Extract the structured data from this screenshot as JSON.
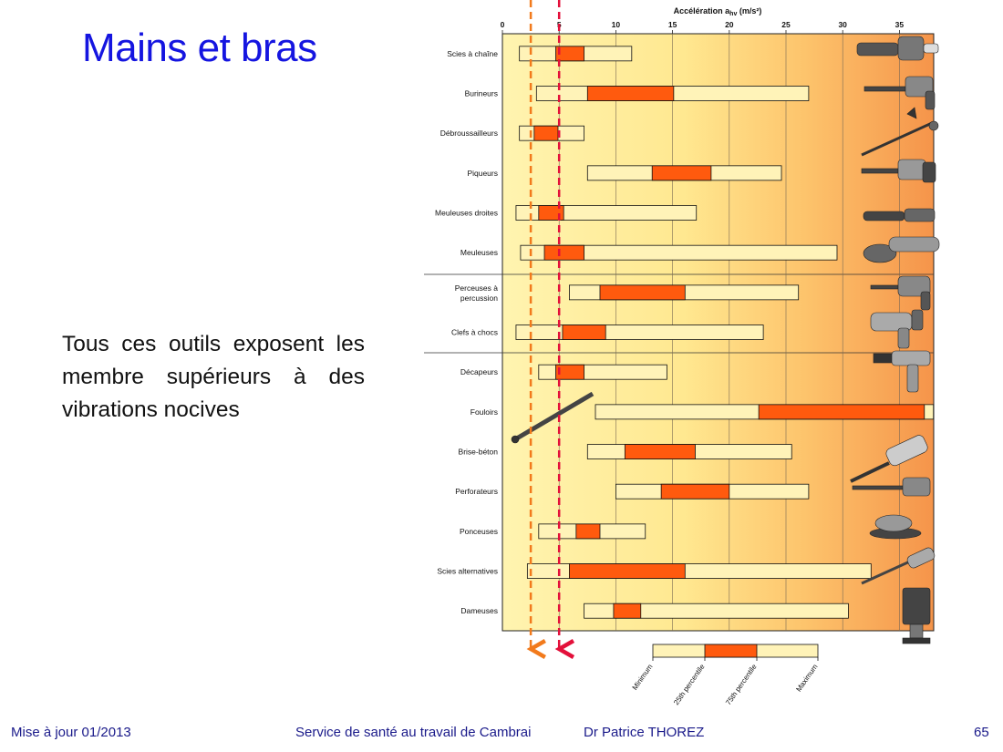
{
  "slide": {
    "title": "Mains et bras",
    "body": "Tous ces outils exposent les membre supérieurs à des vibrations nocives"
  },
  "footer": {
    "left": "Mise à jour 01/2013",
    "center": "Service de santé au travail de Cambrai",
    "author": "Dr Patrice THOREZ",
    "page": "65"
  },
  "colors": {
    "bar_outer": "#fff3b8",
    "bar_inner": "#ff5a0e",
    "line_orange": "#f27a1c",
    "line_red": "#e3103a",
    "title": "#1515e0"
  },
  "chart_data": {
    "type": "bar",
    "orientation": "horizontal",
    "xlabel": "Accélération a",
    "xlabel_sub": "hv",
    "xlabel_unit": " (m/s²)",
    "xlim": [
      0,
      38
    ],
    "ticks": [
      0,
      5,
      10,
      15,
      20,
      25,
      30,
      35
    ],
    "threshold_lines": [
      2.5,
      5
    ],
    "categories": [
      "Scies à chaîne",
      "Burineurs",
      "Débroussailleurs",
      "Piqueurs",
      "Meuleuses droites",
      "Meuleuses",
      "Perceuses à percussion",
      "Clefs à chocs",
      "Décapeurs",
      "Fouloirs",
      "Brise-béton",
      "Perforateurs",
      "Ponceuses",
      "Scies alternatives",
      "Dameuses"
    ],
    "series": [
      {
        "name": "Minimum",
        "values": [
          1.5,
          3,
          1.5,
          7.5,
          1.2,
          1.6,
          5.9,
          1.2,
          3.2,
          8.2,
          7.5,
          10,
          3.2,
          2.2,
          7.2
        ]
      },
      {
        "name": "25th percentile",
        "values": [
          4.7,
          7.5,
          2.8,
          13.2,
          3.2,
          3.7,
          8.6,
          5.3,
          4.7,
          22.6,
          10.8,
          14,
          6.5,
          5.9,
          9.8
        ]
      },
      {
        "name": "75th percentile",
        "values": [
          7.2,
          15.1,
          4.9,
          18.4,
          5.4,
          7.2,
          16.1,
          9.1,
          7.2,
          37.2,
          17,
          20,
          8.6,
          16.1,
          12.2
        ]
      },
      {
        "name": "Maximum",
        "values": [
          11.4,
          27,
          7.2,
          24.6,
          17.1,
          29.5,
          26.1,
          23,
          14.5,
          38,
          25.5,
          27,
          12.6,
          32.5,
          30.5
        ]
      }
    ]
  }
}
